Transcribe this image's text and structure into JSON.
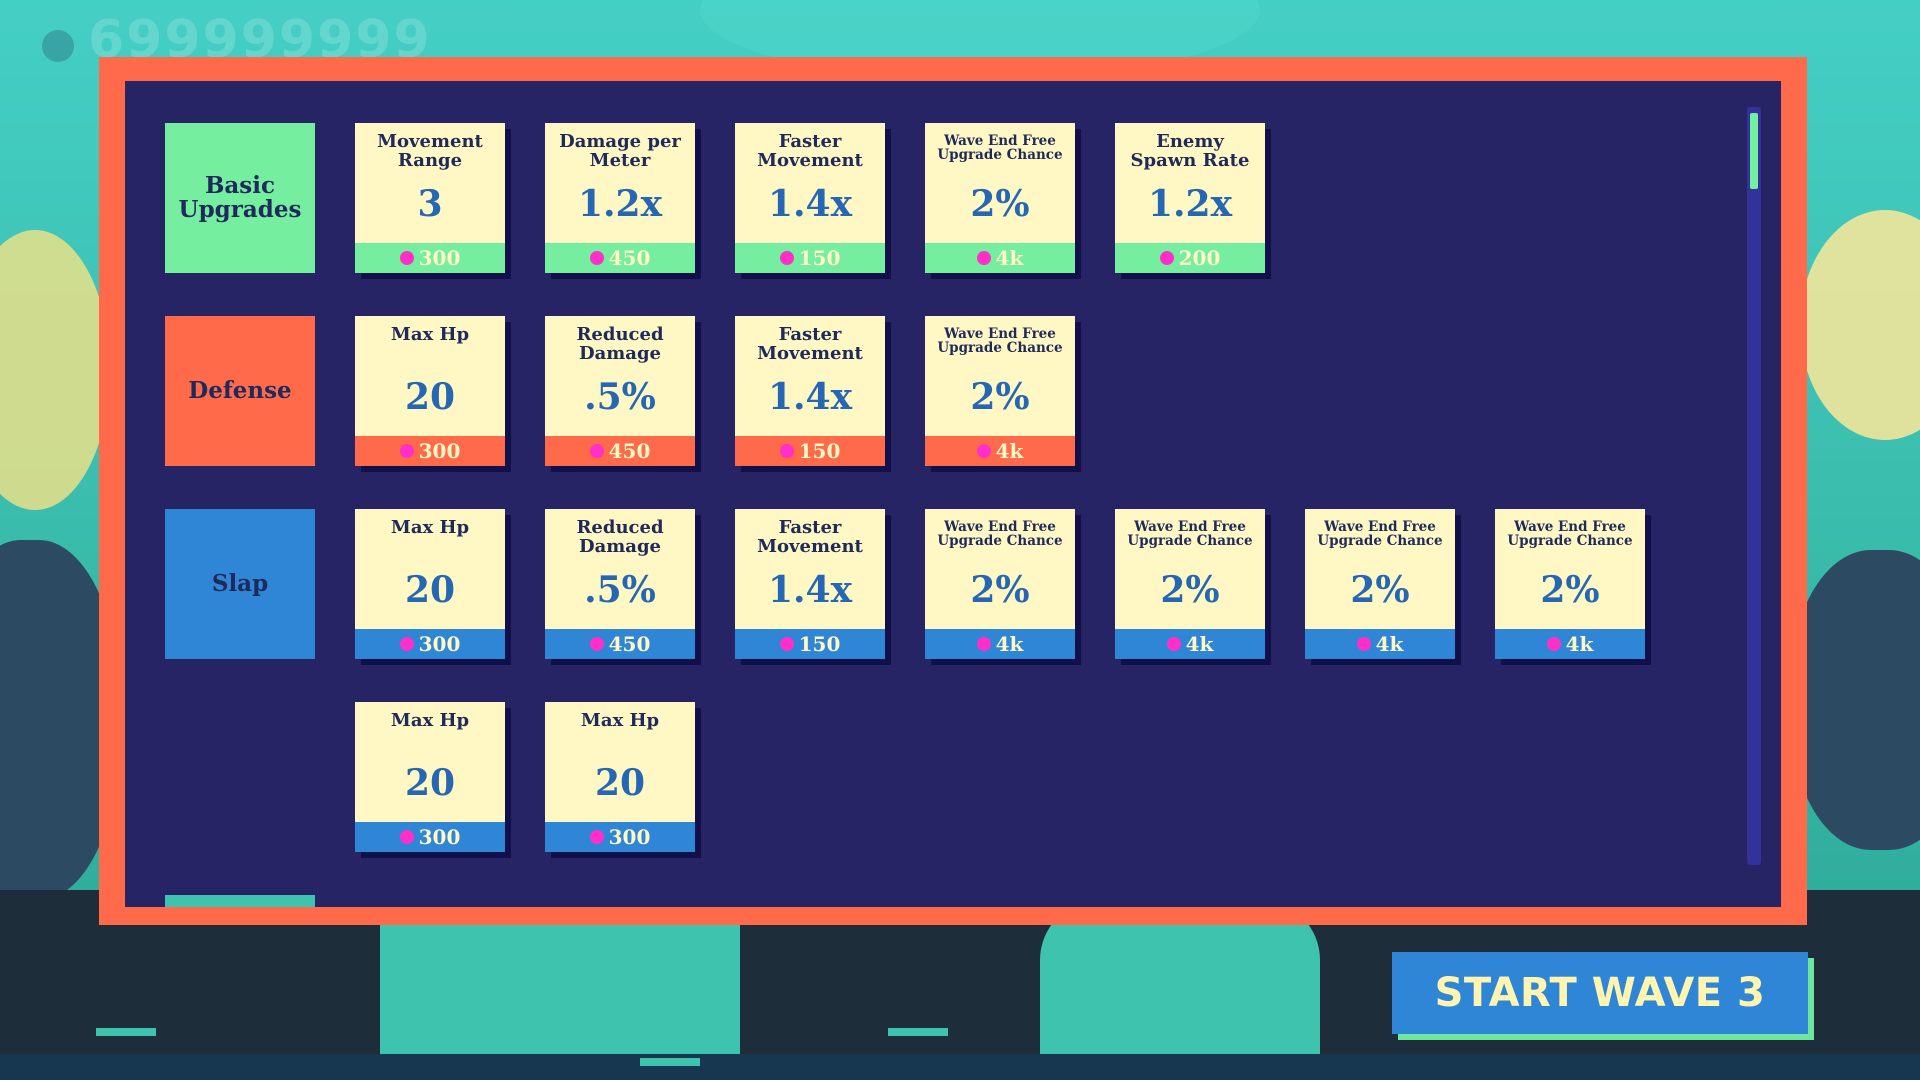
{
  "hud": {
    "score": "699999999"
  },
  "categories": [
    {
      "name": "Basic\nUpgrades",
      "color": "#76eea0",
      "cards": [
        {
          "title": "Movement\nRange",
          "value": "3",
          "price": "300",
          "small": false
        },
        {
          "title": "Damage per\nMeter",
          "value": "1.2x",
          "price": "450",
          "small": false
        },
        {
          "title": "Faster\nMovement",
          "value": "1.4x",
          "price": "150",
          "small": false
        },
        {
          "title": "Wave End Free\nUpgrade Chance",
          "value": "2%",
          "price": "4k",
          "small": true
        },
        {
          "title": "Enemy\nSpawn Rate",
          "value": "1.2x",
          "price": "200",
          "small": false
        }
      ]
    },
    {
      "name": "Defense",
      "color": "#ff6b4a",
      "cards": [
        {
          "title": "Max Hp",
          "value": "20",
          "price": "300",
          "small": false
        },
        {
          "title": "Reduced\nDamage",
          "value": ".5%",
          "price": "450",
          "small": false
        },
        {
          "title": "Faster\nMovement",
          "value": "1.4x",
          "price": "150",
          "small": false
        },
        {
          "title": "Wave End Free\nUpgrade Chance",
          "value": "2%",
          "price": "4k",
          "small": true
        }
      ]
    },
    {
      "name": "Slap",
      "color": "#2f86d6",
      "cards": [
        {
          "title": "Max Hp",
          "value": "20",
          "price": "300",
          "small": false
        },
        {
          "title": "Reduced\nDamage",
          "value": ".5%",
          "price": "450",
          "small": false
        },
        {
          "title": "Faster\nMovement",
          "value": "1.4x",
          "price": "150",
          "small": false
        },
        {
          "title": "Wave End Free\nUpgrade Chance",
          "value": "2%",
          "price": "4k",
          "small": true
        },
        {
          "title": "Wave End Free\nUpgrade Chance",
          "value": "2%",
          "price": "4k",
          "small": true
        },
        {
          "title": "Wave End Free\nUpgrade Chance",
          "value": "2%",
          "price": "4k",
          "small": true
        },
        {
          "title": "Wave End Free\nUpgrade Chance",
          "value": "2%",
          "price": "4k",
          "small": true
        }
      ],
      "extra_cards": [
        {
          "title": "Max Hp",
          "value": "20",
          "price": "300",
          "small": false
        },
        {
          "title": "Max Hp",
          "value": "20",
          "price": "300",
          "small": false
        }
      ]
    },
    {
      "name": "",
      "color": "#3ec3ae",
      "cards": []
    }
  ],
  "colors": {
    "panel_bg": "#262464",
    "frame": "#ff6b4a",
    "card_bg": "#fff7c4",
    "value_text": "#2667b4",
    "coin": "#ff2fc8",
    "scroll_thumb": "#72f0a0"
  },
  "icons": {
    "currency": "coin-icon"
  },
  "start_button": {
    "label": "START WAVE 3"
  }
}
